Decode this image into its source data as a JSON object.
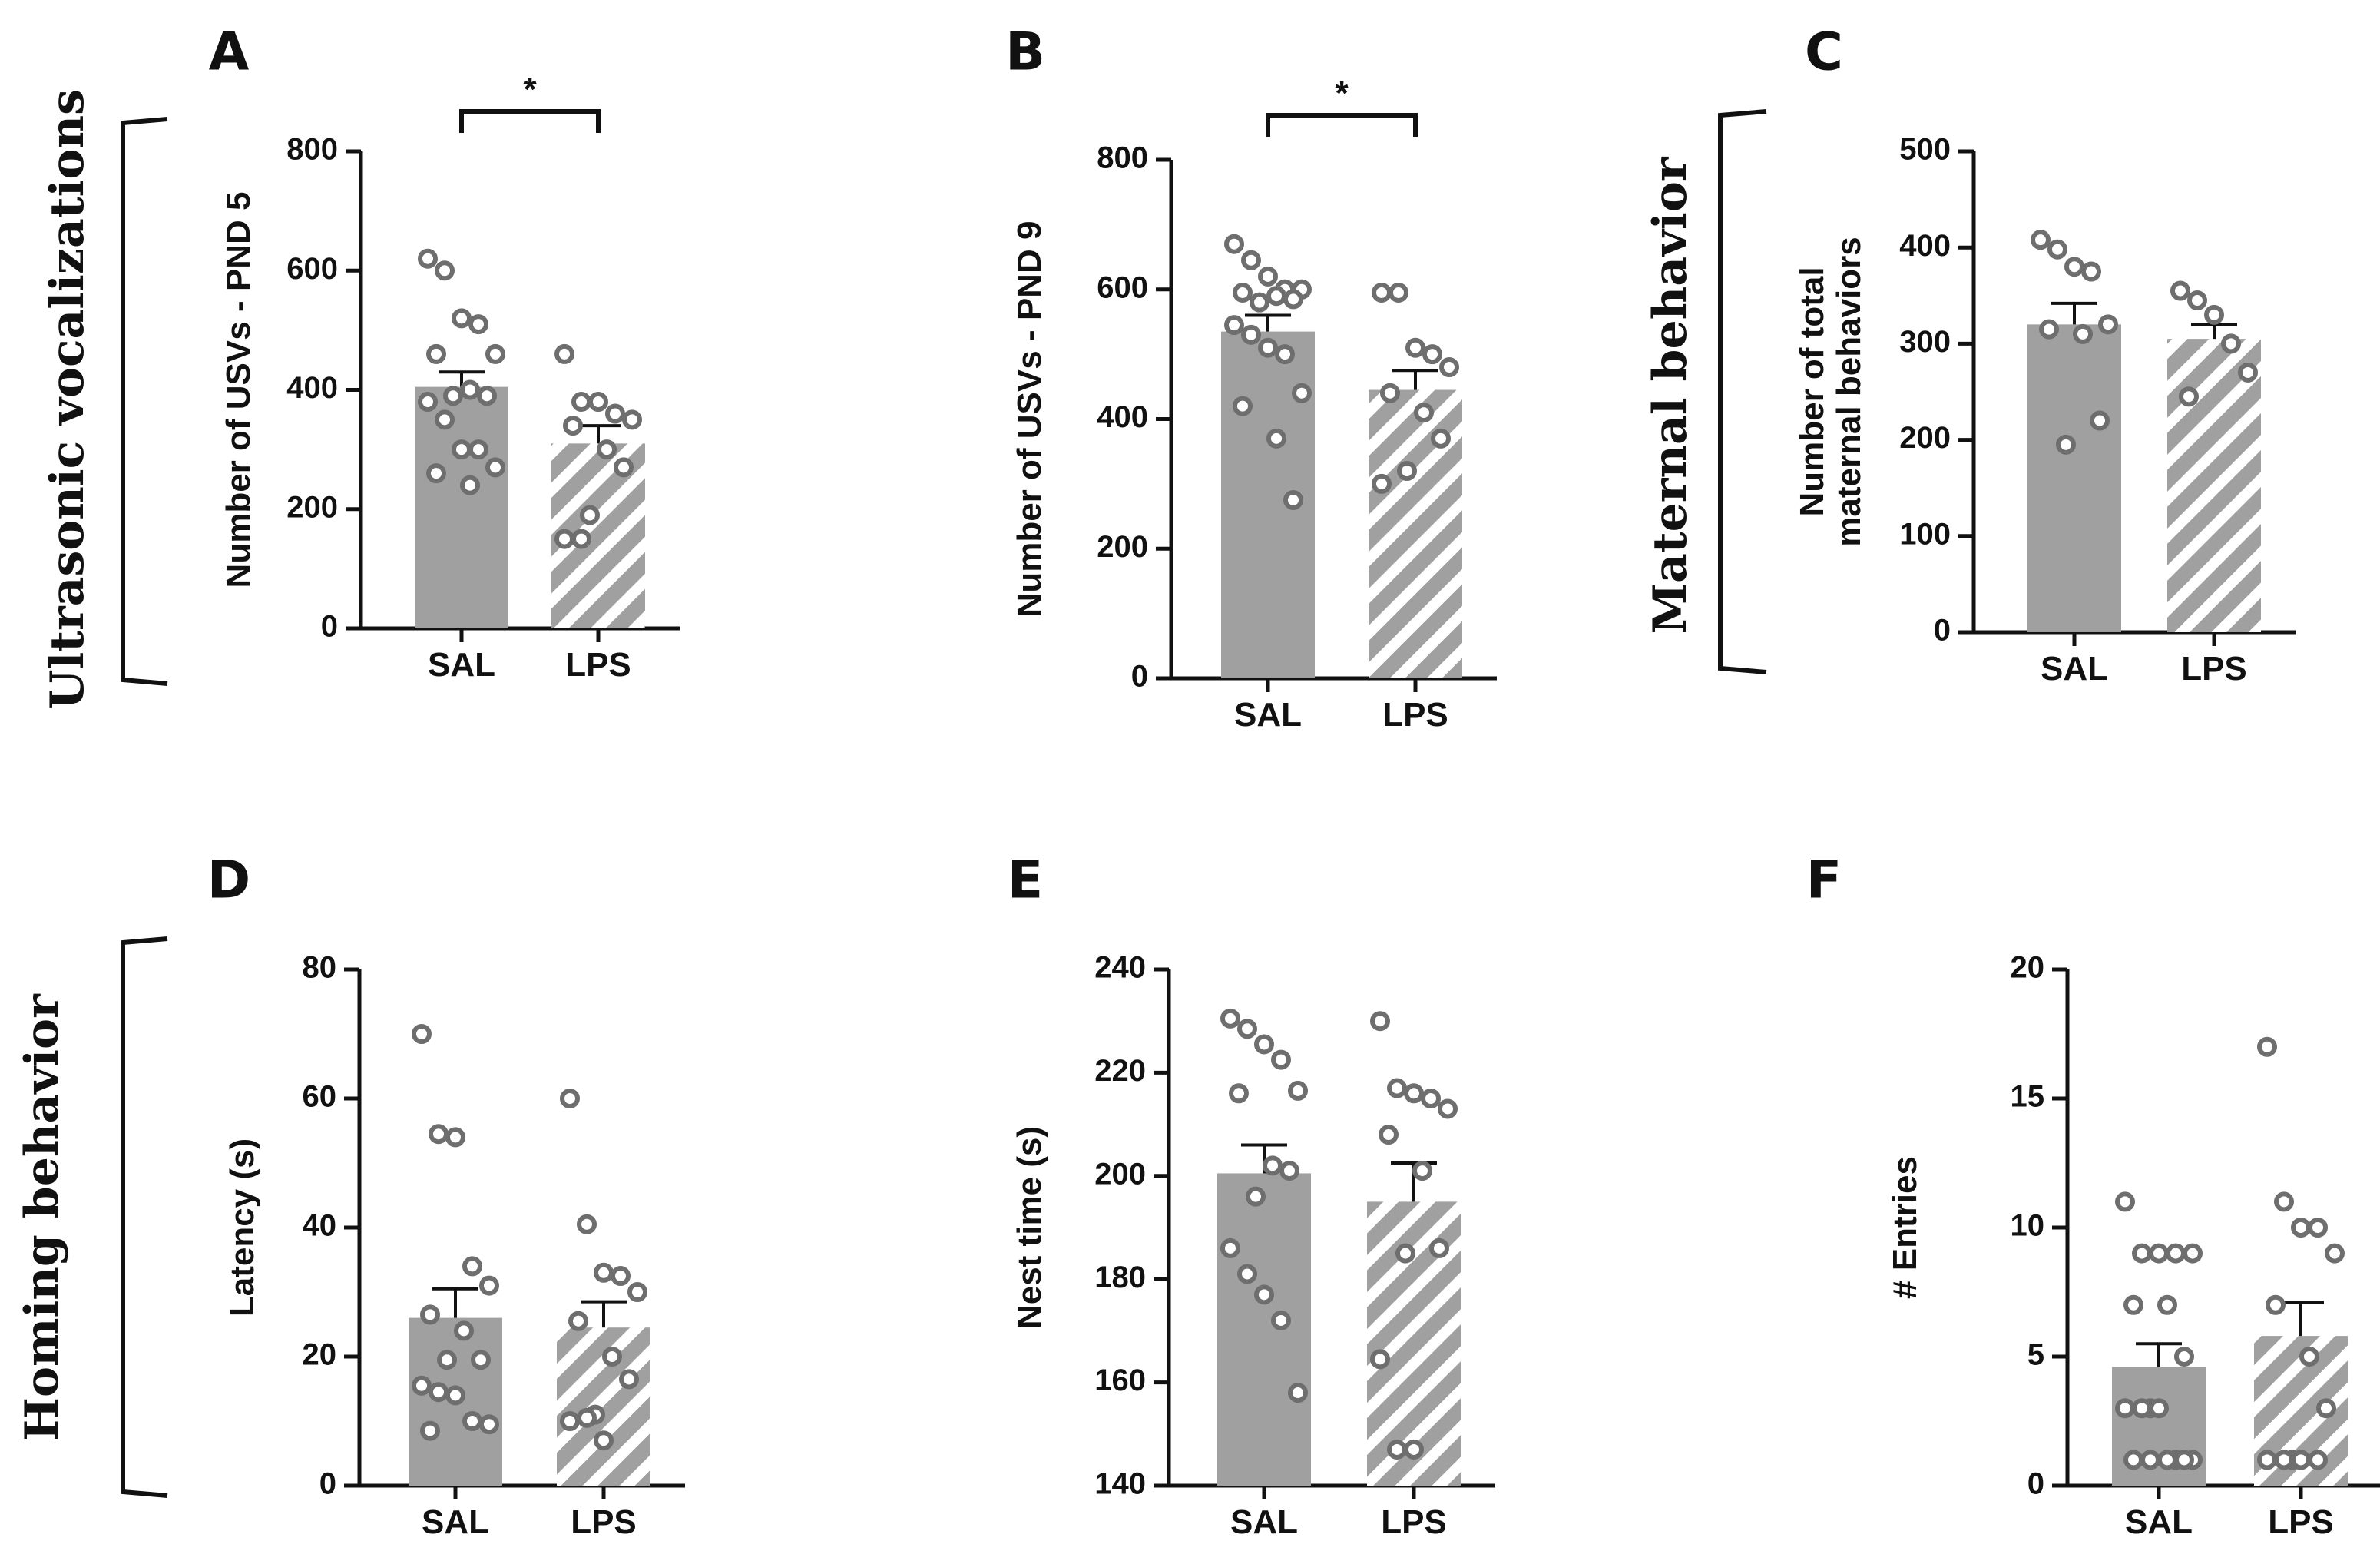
{
  "colors": {
    "bar": "#a0a0a0",
    "axis": "#111111",
    "point_stroke": "#6e6e6e",
    "stripe": "#ffffff"
  },
  "sections": [
    {
      "label": "Ultrasonic vocalizations"
    },
    {
      "label": "Maternal behavior"
    },
    {
      "label": "Homing behavior"
    }
  ],
  "chart_data": [
    {
      "panel": "A",
      "type": "bar",
      "ylabel": "Number of USVs - PND 5",
      "ylim": [
        0,
        800
      ],
      "yticks": [
        0,
        200,
        400,
        600,
        800
      ],
      "categories": [
        "SAL",
        "LPS"
      ],
      "values": [
        405,
        310
      ],
      "sem": [
        25,
        30
      ],
      "points": [
        [
          620,
          600,
          520,
          510,
          460,
          460,
          400,
          390,
          390,
          380,
          350,
          300,
          300,
          270,
          260,
          240
        ],
        [
          460,
          380,
          380,
          360,
          350,
          340,
          300,
          270,
          190,
          150,
          150
        ]
      ],
      "significance": "*"
    },
    {
      "panel": "B",
      "type": "bar",
      "ylabel": "Number of USVs - PND 9",
      "ylim": [
        0,
        800
      ],
      "yticks": [
        0,
        200,
        400,
        600,
        800
      ],
      "categories": [
        "SAL",
        "LPS"
      ],
      "values": [
        535,
        445
      ],
      "sem": [
        25,
        30
      ],
      "points": [
        [
          670,
          645,
          620,
          600,
          600,
          595,
          590,
          585,
          580,
          545,
          530,
          510,
          500,
          440,
          420,
          370,
          275
        ],
        [
          595,
          595,
          510,
          500,
          480,
          440,
          410,
          370,
          320,
          300
        ]
      ],
      "significance": "*"
    },
    {
      "panel": "C",
      "type": "bar",
      "ylabel": "Number of total maternal behaviors",
      "ylim": [
        0,
        500
      ],
      "yticks": [
        0,
        100,
        200,
        300,
        400,
        500
      ],
      "categories": [
        "SAL",
        "LPS"
      ],
      "values": [
        320,
        305
      ],
      "sem": [
        22,
        15
      ],
      "points": [
        [
          408,
          398,
          380,
          375,
          320,
          315,
          310,
          220,
          195
        ],
        [
          355,
          345,
          330,
          300,
          270,
          245
        ]
      ]
    },
    {
      "panel": "D",
      "type": "bar",
      "ylabel": "Latency (s)",
      "ylim": [
        0,
        80
      ],
      "yticks": [
        0,
        20,
        40,
        60,
        80
      ],
      "categories": [
        "SAL",
        "LPS"
      ],
      "values": [
        26,
        24.5
      ],
      "sem": [
        4.5,
        4
      ],
      "points": [
        [
          70,
          54.5,
          54,
          34,
          31,
          26.5,
          24,
          19.5,
          19.5,
          15.5,
          14.5,
          14,
          10,
          9.5,
          8.5
        ],
        [
          60,
          40.5,
          33,
          32.5,
          30,
          25.5,
          20,
          16.5,
          11,
          10,
          10.5,
          7
        ]
      ]
    },
    {
      "panel": "E",
      "type": "bar",
      "ylabel": "Nest time (s)",
      "ylim": [
        140,
        240
      ],
      "yticks": [
        140,
        160,
        180,
        200,
        220,
        240
      ],
      "categories": [
        "SAL",
        "LPS"
      ],
      "values": [
        200.5,
        195
      ],
      "sem": [
        5.5,
        7.5
      ],
      "points": [
        [
          230.5,
          228.5,
          225.5,
          222.5,
          216.5,
          216,
          202,
          201,
          196,
          186,
          181,
          177,
          172,
          158
        ],
        [
          230,
          217,
          216,
          215,
          213,
          208,
          201,
          186,
          185,
          164.5,
          147,
          147
        ]
      ]
    },
    {
      "panel": "F",
      "type": "bar",
      "ylabel": "# Entries",
      "ylim": [
        0,
        20
      ],
      "yticks": [
        0,
        5,
        10,
        15,
        20
      ],
      "categories": [
        "SAL",
        "LPS"
      ],
      "values": [
        4.6,
        5.8
      ],
      "sem": [
        0.9,
        1.3
      ],
      "points": [
        [
          11,
          9,
          9,
          9,
          9,
          7,
          7,
          5,
          3,
          3,
          3,
          3,
          1,
          1,
          1,
          1,
          1,
          1
        ],
        [
          17,
          11,
          10,
          10,
          9,
          7,
          5,
          3,
          1,
          1,
          1,
          1,
          1
        ]
      ]
    }
  ]
}
